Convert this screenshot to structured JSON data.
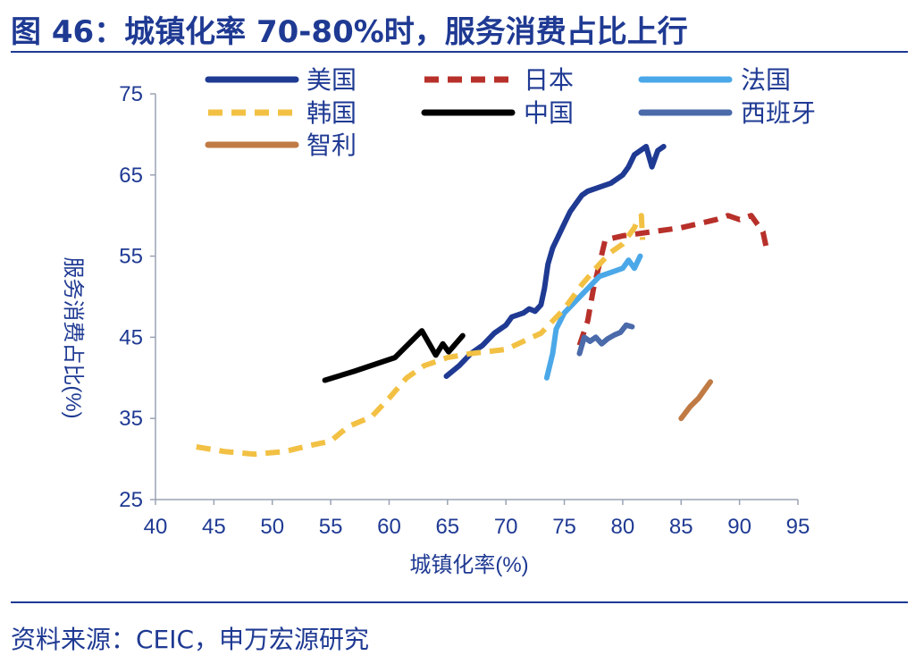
{
  "figure": {
    "title": "图 46：城镇化率 70-80%时，服务消费占比上行",
    "source": "资料来源：CEIC，申万宏源研究"
  },
  "chart_data": {
    "type": "line",
    "title": "图 46：城镇化率 70-80%时，服务消费占比上行",
    "xlabel": "城镇化率(%)",
    "ylabel": "服务消费占比(%)",
    "xlim": [
      40,
      95
    ],
    "ylim": [
      25,
      75
    ],
    "xticks": [
      40,
      45,
      50,
      55,
      60,
      65,
      70,
      75,
      80,
      85,
      90,
      95
    ],
    "yticks": [
      25,
      35,
      45,
      55,
      65,
      75
    ],
    "grid": false,
    "legend_position": "top",
    "series": [
      {
        "name": "美国",
        "color": "#1f3a93",
        "dash": "solid",
        "points": [
          [
            64.9,
            40.2
          ],
          [
            66.0,
            41.5
          ],
          [
            67.0,
            43.0
          ],
          [
            68.0,
            44.0
          ],
          [
            69.0,
            45.5
          ],
          [
            70.0,
            46.5
          ],
          [
            70.5,
            47.5
          ],
          [
            71.5,
            48.0
          ],
          [
            72.0,
            48.5
          ],
          [
            72.5,
            48.2
          ],
          [
            73.0,
            49.0
          ],
          [
            73.3,
            51.0
          ],
          [
            73.6,
            54.0
          ],
          [
            74.0,
            56.0
          ],
          [
            74.5,
            57.5
          ],
          [
            75.0,
            59.0
          ],
          [
            75.5,
            60.5
          ],
          [
            76.0,
            61.5
          ],
          [
            76.5,
            62.5
          ],
          [
            77.0,
            63.0
          ],
          [
            78.0,
            63.5
          ],
          [
            79.0,
            64.0
          ],
          [
            80.0,
            65.0
          ],
          [
            80.5,
            66.0
          ],
          [
            81.0,
            67.5
          ],
          [
            82.0,
            68.5
          ],
          [
            82.5,
            66.0
          ],
          [
            83.0,
            68.0
          ],
          [
            83.5,
            68.5
          ]
        ]
      },
      {
        "name": "日本",
        "color": "#b8302a",
        "dash": "dashed",
        "points": [
          [
            76.3,
            44.0
          ],
          [
            77.0,
            47.0
          ],
          [
            77.5,
            51.0
          ],
          [
            78.0,
            54.0
          ],
          [
            78.5,
            57.0
          ],
          [
            80.0,
            57.5
          ],
          [
            85.0,
            58.5
          ],
          [
            88.0,
            59.5
          ],
          [
            89.0,
            60.0
          ],
          [
            90.0,
            59.5
          ],
          [
            91.0,
            60.0
          ],
          [
            91.5,
            59.0
          ],
          [
            92.0,
            58.0
          ],
          [
            92.3,
            56.0
          ]
        ]
      },
      {
        "name": "法国",
        "color": "#4ba8e8",
        "dash": "solid",
        "points": [
          [
            73.5,
            40.0
          ],
          [
            74.0,
            43.0
          ],
          [
            74.3,
            46.0
          ],
          [
            75.0,
            48.0
          ],
          [
            76.0,
            49.5
          ],
          [
            77.0,
            51.0
          ],
          [
            78.0,
            52.5
          ],
          [
            79.0,
            53.0
          ],
          [
            80.0,
            53.5
          ],
          [
            80.5,
            54.5
          ],
          [
            81.0,
            53.5
          ],
          [
            81.5,
            55.0
          ]
        ]
      },
      {
        "name": "韩国",
        "color": "#f2c144",
        "dash": "dashed",
        "points": [
          [
            43.5,
            31.5
          ],
          [
            46.0,
            30.9
          ],
          [
            48.5,
            30.6
          ],
          [
            51.0,
            30.9
          ],
          [
            53.0,
            31.6
          ],
          [
            55.0,
            32.2
          ],
          [
            56.5,
            34.0
          ],
          [
            58.5,
            35.2
          ],
          [
            60.0,
            37.5
          ],
          [
            61.5,
            40.0
          ],
          [
            63.0,
            41.5
          ],
          [
            65.0,
            42.5
          ],
          [
            67.0,
            43.0
          ],
          [
            70.0,
            43.5
          ],
          [
            73.0,
            45.5
          ],
          [
            75.0,
            48.5
          ],
          [
            76.5,
            51.5
          ],
          [
            78.0,
            54.0
          ],
          [
            79.0,
            55.5
          ],
          [
            80.0,
            56.5
          ],
          [
            80.5,
            57.5
          ],
          [
            81.0,
            58.5
          ],
          [
            81.3,
            59.5
          ],
          [
            81.6,
            60.0
          ],
          [
            81.7,
            57.0
          ]
        ]
      },
      {
        "name": "中国",
        "color": "#000000",
        "dash": "solid",
        "points": [
          [
            54.5,
            39.7
          ],
          [
            57.0,
            40.8
          ],
          [
            60.5,
            42.5
          ],
          [
            62.8,
            45.8
          ],
          [
            64.0,
            42.8
          ],
          [
            64.6,
            44.2
          ],
          [
            65.1,
            43.2
          ],
          [
            66.3,
            45.2
          ]
        ]
      },
      {
        "name": "西班牙",
        "color": "#4a6aaa",
        "dash": "solid",
        "points": [
          [
            76.3,
            43.0
          ],
          [
            76.7,
            45.0
          ],
          [
            77.2,
            44.5
          ],
          [
            77.7,
            45.0
          ],
          [
            78.2,
            44.2
          ],
          [
            78.7,
            44.8
          ],
          [
            79.3,
            45.3
          ],
          [
            79.8,
            45.6
          ],
          [
            80.3,
            46.5
          ],
          [
            80.8,
            46.3
          ]
        ]
      },
      {
        "name": "智利",
        "color": "#c07b45",
        "dash": "solid",
        "points": [
          [
            85.0,
            35.0
          ],
          [
            85.8,
            36.5
          ],
          [
            86.5,
            37.5
          ],
          [
            87.0,
            38.5
          ],
          [
            87.5,
            39.5
          ]
        ]
      }
    ]
  }
}
